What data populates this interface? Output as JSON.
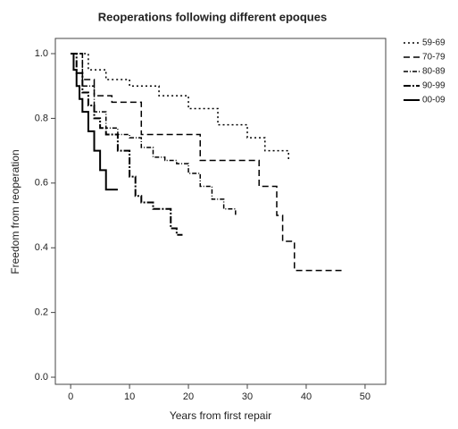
{
  "chart_data": {
    "type": "step",
    "title": "Reoperations following different epoques",
    "x_label": "Years from first repair",
    "y_label": "Freedom from reoperation",
    "xlim": [
      -2.6,
      53.5
    ],
    "ylim": [
      -0.022,
      1.047
    ],
    "xticks": [
      0,
      10,
      20,
      30,
      40,
      50
    ],
    "yticks": [
      {
        "value": 0,
        "label": "0.0"
      },
      0.2,
      0.4,
      0.6,
      0.8,
      {
        "value": 1,
        "label": "1.0"
      }
    ],
    "series": [
      {
        "name": "59-69",
        "color": "#000000",
        "x": [
          0,
          3,
          6,
          10,
          15,
          20,
          25,
          30,
          33,
          37
        ],
        "values": [
          1,
          0.95,
          0.92,
          0.9,
          0.87,
          0.83,
          0.78,
          0.74,
          0.7,
          0.67
        ]
      },
      {
        "name": "70-79",
        "color": "#000000",
        "x": [
          0,
          2,
          4,
          7,
          12,
          22,
          32,
          35,
          36,
          38,
          46
        ],
        "values": [
          1,
          0.92,
          0.87,
          0.85,
          0.75,
          0.67,
          0.59,
          0.5,
          0.42,
          0.33,
          0.33
        ]
      },
      {
        "name": "80-89",
        "color": "#000000",
        "x": [
          0,
          2,
          4,
          6,
          8,
          10,
          12,
          14,
          16,
          18,
          20,
          22,
          24,
          26,
          28
        ],
        "values": [
          1,
          0.9,
          0.82,
          0.77,
          0.75,
          0.74,
          0.71,
          0.68,
          0.67,
          0.66,
          0.63,
          0.59,
          0.55,
          0.52,
          0.5
        ]
      },
      {
        "name": "90-99",
        "color": "#000000",
        "x": [
          0,
          1,
          2,
          3,
          4,
          5,
          6,
          8,
          10,
          11,
          12,
          14,
          16,
          17,
          18,
          19
        ],
        "values": [
          1,
          0.94,
          0.88,
          0.84,
          0.8,
          0.77,
          0.75,
          0.7,
          0.62,
          0.56,
          0.54,
          0.52,
          0.52,
          0.46,
          0.44,
          0.44
        ]
      },
      {
        "name": "00-09",
        "color": "#000000",
        "x": [
          0,
          0.5,
          1,
          1.5,
          2,
          3,
          4,
          5,
          6,
          8
        ],
        "values": [
          1,
          0.95,
          0.9,
          0.86,
          0.82,
          0.76,
          0.7,
          0.64,
          0.58,
          0.58
        ]
      }
    ]
  }
}
